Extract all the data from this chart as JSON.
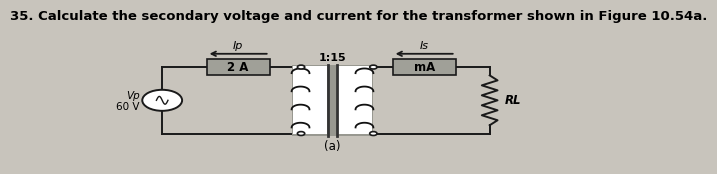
{
  "title": "35. Calculate the secondary voltage and current for the transformer shown in Figure 10.54a.",
  "title_fontsize": 9.5,
  "bg_color": "#c8c4bc",
  "label_a": "(a)",
  "ip_label": "Ip",
  "is_label": "Is",
  "vp_label": "Vp",
  "v60_label": "60 V",
  "ammeter_primary": "2 A",
  "ratio_label": "1:15",
  "ammeter_secondary": "mA",
  "rl_label": "RL",
  "wire_color": "#1a1a1a",
  "box_face": "#a0a098",
  "trans_face": "#989890",
  "lw": 1.4,
  "coil_color": "#111111"
}
